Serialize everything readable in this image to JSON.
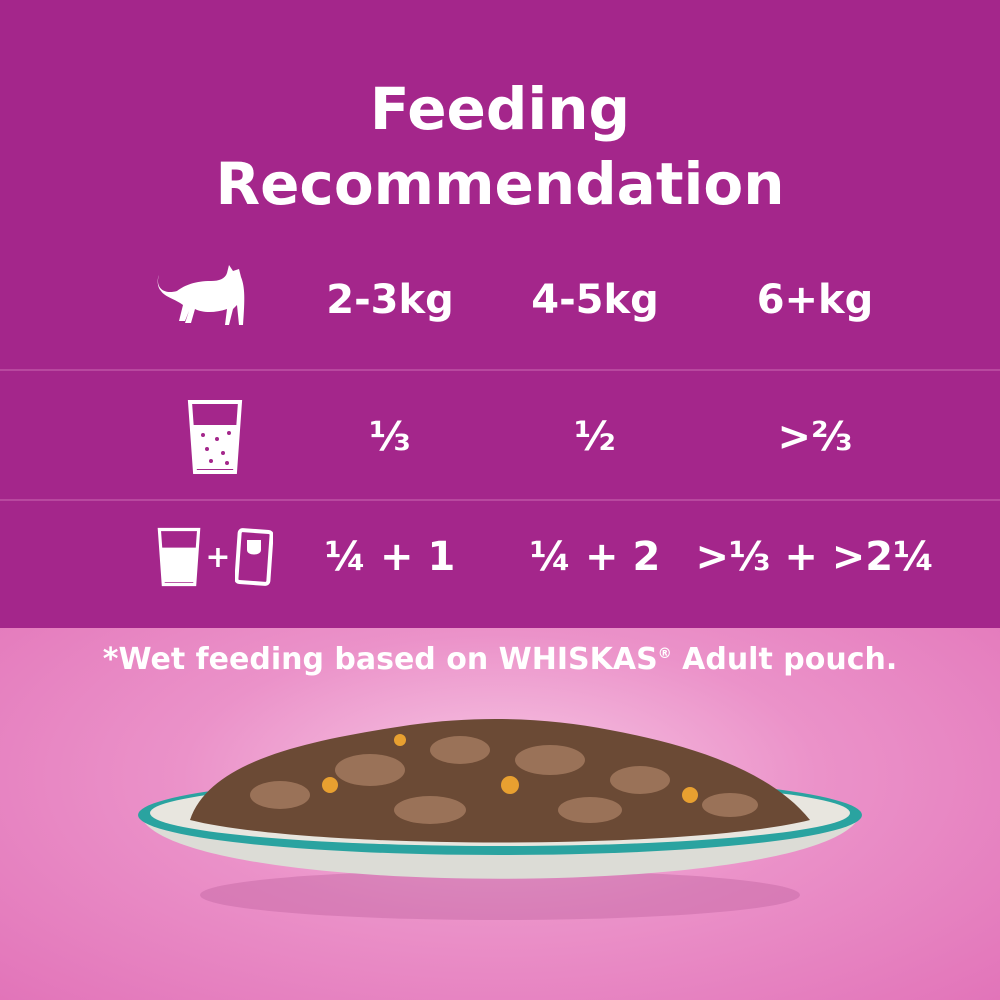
{
  "title_line1": "Feeding",
  "title_line2": "Recommendation",
  "weights": [
    "2-3kg",
    "4-5kg",
    "6+kg"
  ],
  "dry_only": [
    "⅓",
    "½",
    ">⅔"
  ],
  "mixed": [
    "¼ + 1",
    "¼ + 2",
    ">⅓ + >2¼"
  ],
  "mixed_plus": "+",
  "note": "*Wet feeding based on WHISKAS",
  "note_reg": "®",
  "note_end": " Adult pouch.",
  "colors": {
    "purple": "#a4268b",
    "pink": "#e67cbe",
    "bowl_rim": "#2aa3a0"
  },
  "icons": [
    "cat-icon",
    "dry-food-cup-icon",
    "pouch-icon"
  ]
}
